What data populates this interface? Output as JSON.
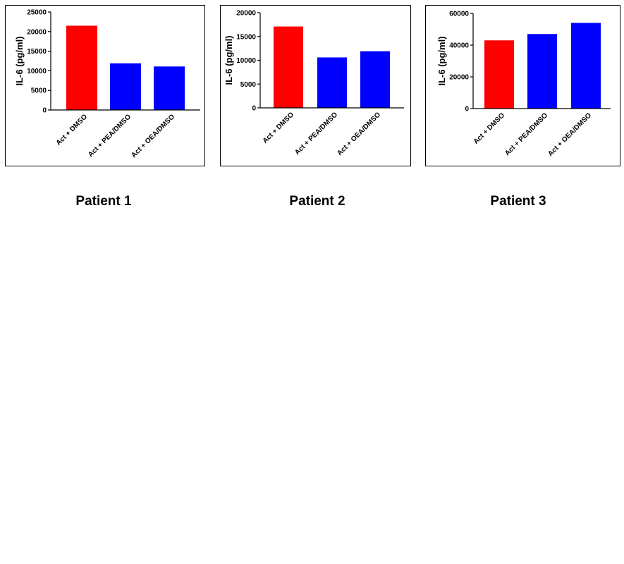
{
  "chart_data": [
    {
      "type": "bar",
      "title": "Patient 1",
      "xlabel": "",
      "ylabel": "IL-6 (pg/ml)",
      "categories": [
        "Act + DMSO",
        "Act + PEA/DMSO",
        "Act + OEA/DMSO"
      ],
      "values": [
        21500,
        11900,
        11100
      ],
      "bar_colors": [
        "#ff0000",
        "#0000ff",
        "#0000ff"
      ],
      "ylim": [
        0,
        25000
      ],
      "yticks": [
        0,
        5000,
        10000,
        15000,
        20000,
        25000
      ],
      "ytick_labels": [
        "0",
        "5000",
        "10000",
        "15000",
        "20000",
        "25000"
      ],
      "grid": false
    },
    {
      "type": "bar",
      "title": "Patient 2",
      "xlabel": "",
      "ylabel": "IL-6 (pg/ml)",
      "categories": [
        "Act + DMSO",
        "Act + PEA/DMSO",
        "Act + OEA/DMSO"
      ],
      "values": [
        17100,
        10600,
        11900
      ],
      "bar_colors": [
        "#ff0000",
        "#0000ff",
        "#0000ff"
      ],
      "ylim": [
        0,
        20000
      ],
      "yticks": [
        0,
        5000,
        10000,
        15000,
        20000
      ],
      "ytick_labels": [
        "0",
        "5000",
        "10000",
        "15000",
        "20000"
      ],
      "grid": false
    },
    {
      "type": "bar",
      "title": "Patient 3",
      "xlabel": "",
      "ylabel": "IL-6 (pg/ml)",
      "categories": [
        "Act + DMSO",
        "Act + PEA/DMSO",
        "Act + OEA/DMSO"
      ],
      "values": [
        43000,
        47000,
        54000
      ],
      "bar_colors": [
        "#ff0000",
        "#0000ff",
        "#0000ff"
      ],
      "ylim": [
        0,
        60000
      ],
      "yticks": [
        0,
        20000,
        40000,
        60000
      ],
      "ytick_labels": [
        "0",
        "20000",
        "40000",
        "60000"
      ],
      "grid": false
    }
  ]
}
